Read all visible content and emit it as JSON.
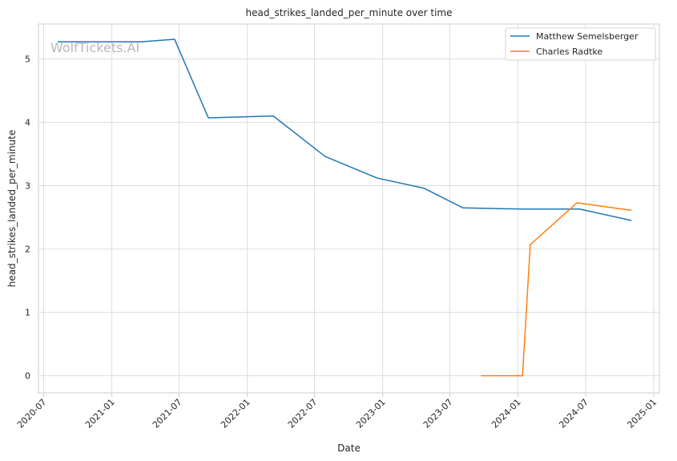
{
  "chart_data": {
    "type": "line",
    "title": "head_strikes_landed_per_minute over time",
    "xlabel": "Date",
    "ylabel": "head_strikes_landed_per_minute",
    "watermark": "WolfTickets.AI",
    "x_ticks": [
      "2020-07",
      "2021-01",
      "2021-07",
      "2022-01",
      "2022-07",
      "2023-01",
      "2023-07",
      "2024-01",
      "2024-07",
      "2025-01"
    ],
    "y_ticks": [
      "0",
      "1",
      "2",
      "3",
      "4",
      "5"
    ],
    "xlim": [
      "2020-06-17",
      "2025-01-16"
    ],
    "ylim": [
      -0.27,
      5.55
    ],
    "grid": true,
    "legend_position": "top-right",
    "series": [
      {
        "name": "Matthew Semelsberger",
        "color": "#1f77b4",
        "points": [
          {
            "x": "2020-08-08",
            "y": 5.27
          },
          {
            "x": "2021-03-20",
            "y": 5.27
          },
          {
            "x": "2021-06-19",
            "y": 5.31
          },
          {
            "x": "2021-09-18",
            "y": 4.07
          },
          {
            "x": "2022-03-12",
            "y": 4.1
          },
          {
            "x": "2022-07-30",
            "y": 3.46
          },
          {
            "x": "2022-12-17",
            "y": 3.12
          },
          {
            "x": "2023-04-22",
            "y": 2.96
          },
          {
            "x": "2023-08-05",
            "y": 2.65
          },
          {
            "x": "2024-01-13",
            "y": 2.63
          },
          {
            "x": "2024-06-15",
            "y": 2.63
          },
          {
            "x": "2024-11-02",
            "y": 2.45
          }
        ]
      },
      {
        "name": "Charles Radtke",
        "color": "#ff7f0e",
        "points": [
          {
            "x": "2023-09-23",
            "y": 0
          },
          {
            "x": "2024-01-13",
            "y": 0
          },
          {
            "x": "2024-02-03",
            "y": 2.07
          },
          {
            "x": "2024-06-08",
            "y": 2.73
          },
          {
            "x": "2024-11-02",
            "y": 2.61
          }
        ]
      }
    ]
  }
}
